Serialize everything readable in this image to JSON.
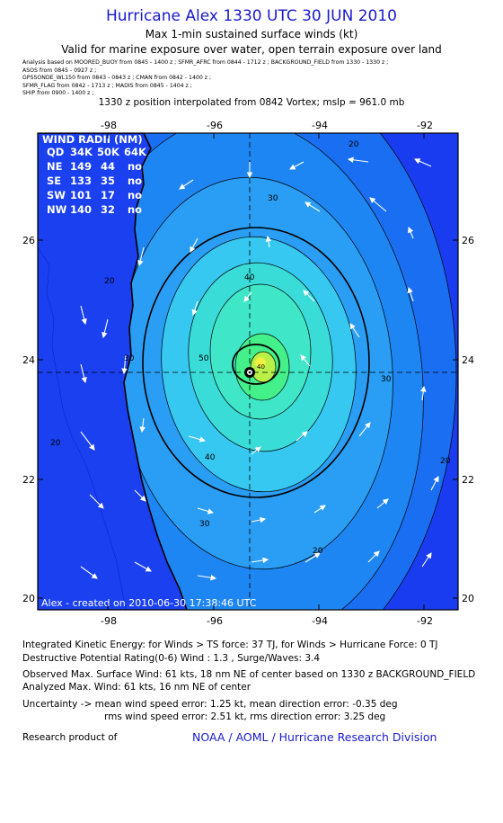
{
  "header": {
    "title": "Hurricane Alex 1330 UTC 30 JUN 2010",
    "subtitle": "Max 1-min sustained surface winds (kt)",
    "validity": "Valid for marine exposure over water, open terrain exposure over land",
    "sources": [
      "Analysis based on MOORED_BUOY from 0845 - 1400 z ;  SFMR_AFRC from 0844 - 1712 z ;  BACKGROUND_FIELD from 1330 - 1330 z ;",
      "ASOS from 0845 - 0927 z ;",
      "GPSSONDE_WL150 from 0843 - 0843 z ;  CMAN from 0842 - 1400 z ;",
      "SFMR_FLAG from 0842 - 1713 z ;  MADIS from 0845 - 1404 z ;",
      "SHIP from 0900 - 1400 z ;"
    ],
    "position_note": "1330 z position interpolated from 0842 Vortex; mslp = 961.0 mb"
  },
  "map": {
    "lon_ticks": [
      "-98",
      "-96",
      "-94",
      "-92"
    ],
    "lat_ticks": [
      "26",
      "24",
      "22",
      "20"
    ],
    "lon_range": [
      -99.5,
      -91.5
    ],
    "lat_range": [
      19.8,
      26.8
    ],
    "center": {
      "lon": -95.8,
      "lat": 23.8
    },
    "contour_labels": [
      "20",
      "30",
      "40",
      "50",
      "30",
      "40",
      "30",
      "20",
      "30",
      "20",
      "40",
      "20",
      "20"
    ],
    "credit": "Alex - created on 2010-06-30 17:38:46 UTC",
    "colors": {
      "outer": "#1a3cf0",
      "c20": "#1a6ef2",
      "c30": "#2a9df4",
      "c40": "#36c8f0",
      "c50": "#3fe6c8",
      "c55": "#44f08a",
      "c60": "#b8f048",
      "c65": "#f0f040"
    }
  },
  "wind_radii": {
    "title": "WIND RADII (NM)",
    "header": [
      "QD",
      "34K",
      "50K",
      "64K"
    ],
    "rows": [
      [
        "NE",
        "149",
        "44",
        "no"
      ],
      [
        "SE",
        "133",
        "35",
        "no"
      ],
      [
        "SW",
        "101",
        "17",
        "no"
      ],
      [
        "NW",
        "140",
        "32",
        "no"
      ]
    ]
  },
  "footer": {
    "ike": "Integrated Kinetic Energy:  for Winds > TS force: 37 TJ,  for Winds > Hurricane Force: 0 TJ",
    "dpr": "Destructive Potential Rating(0-6)   Wind : 1.3 , Surge/Waves: 3.4",
    "observed": "Observed Max. Surface Wind: 61 kts, 18 nm NE of center based on 1330 z BACKGROUND_FIELD",
    "analyzed": "Analyzed Max. Wind: 61 kts, 16 nm NE of center",
    "uncertainty1": "Uncertainty -> mean wind speed error: 1.25 kt,   mean direction error:  -0.35 deg",
    "uncertainty2": "rms wind speed error: 2.51 kt,   rms direction error: 3.25 deg",
    "research": "Research product of",
    "org": "NOAA / AOML / Hurricane Research Division"
  }
}
